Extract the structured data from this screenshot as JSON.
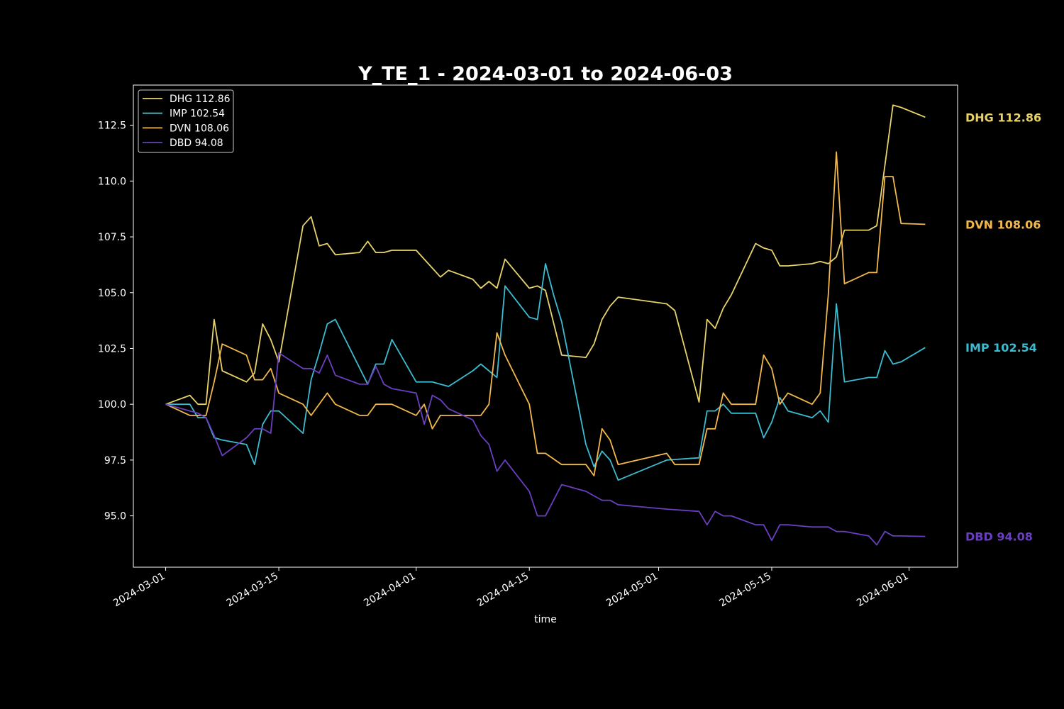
{
  "chart_data": {
    "type": "line",
    "title": "Y_TE_1 - 2024-03-01 to 2024-06-03",
    "xlabel": "time",
    "ylabel": "",
    "ylim": [
      92.7,
      114.3
    ],
    "xlim": [
      "2024-02-26",
      "2024-06-07"
    ],
    "yticks": [
      95.0,
      97.5,
      100.0,
      102.5,
      105.0,
      107.5,
      110.0,
      112.5
    ],
    "ytick_labels": [
      "95.0",
      "97.5",
      "100.0",
      "102.5",
      "105.0",
      "107.5",
      "110.0",
      "112.5"
    ],
    "xticks": [
      "2024-03-01",
      "2024-03-15",
      "2024-04-01",
      "2024-04-15",
      "2024-05-01",
      "2024-05-15",
      "2024-06-01"
    ],
    "xtick_labels": [
      "2024-03-01",
      "2024-03-15",
      "2024-04-01",
      "2024-04-15",
      "2024-05-01",
      "2024-05-15",
      "2024-06-01"
    ],
    "legend_position": "top-left",
    "grid": false,
    "series": [
      {
        "name": "DHG 112.86",
        "color": "#e8d36a",
        "end_label": "DHG 112.86",
        "points": [
          [
            "2024-03-01",
            100.0
          ],
          [
            "2024-03-04",
            100.4
          ],
          [
            "2024-03-05",
            100.0
          ],
          [
            "2024-03-06",
            100.0
          ],
          [
            "2024-03-07",
            103.8
          ],
          [
            "2024-03-08",
            101.5
          ],
          [
            "2024-03-11",
            101.0
          ],
          [
            "2024-03-12",
            101.4
          ],
          [
            "2024-03-13",
            103.6
          ],
          [
            "2024-03-14",
            102.9
          ],
          [
            "2024-03-15",
            101.9
          ],
          [
            "2024-03-18",
            108.0
          ],
          [
            "2024-03-19",
            108.4
          ],
          [
            "2024-03-20",
            107.1
          ],
          [
            "2024-03-21",
            107.2
          ],
          [
            "2024-03-22",
            106.7
          ],
          [
            "2024-03-25",
            106.8
          ],
          [
            "2024-03-26",
            107.3
          ],
          [
            "2024-03-27",
            106.8
          ],
          [
            "2024-03-28",
            106.8
          ],
          [
            "2024-03-29",
            106.9
          ],
          [
            "2024-04-01",
            106.9
          ],
          [
            "2024-04-02",
            106.5
          ],
          [
            "2024-04-03",
            106.1
          ],
          [
            "2024-04-04",
            105.7
          ],
          [
            "2024-04-05",
            106.0
          ],
          [
            "2024-04-08",
            105.6
          ],
          [
            "2024-04-09",
            105.2
          ],
          [
            "2024-04-10",
            105.5
          ],
          [
            "2024-04-11",
            105.2
          ],
          [
            "2024-04-12",
            106.5
          ],
          [
            "2024-04-15",
            105.2
          ],
          [
            "2024-04-16",
            105.3
          ],
          [
            "2024-04-17",
            105.1
          ],
          [
            "2024-04-19",
            102.2
          ],
          [
            "2024-04-22",
            102.1
          ],
          [
            "2024-04-23",
            102.7
          ],
          [
            "2024-04-24",
            103.8
          ],
          [
            "2024-04-25",
            104.4
          ],
          [
            "2024-04-26",
            104.8
          ],
          [
            "2024-05-02",
            104.5
          ],
          [
            "2024-05-03",
            104.2
          ],
          [
            "2024-05-06",
            100.1
          ],
          [
            "2024-05-07",
            103.8
          ],
          [
            "2024-05-08",
            103.4
          ],
          [
            "2024-05-09",
            104.3
          ],
          [
            "2024-05-10",
            104.9
          ],
          [
            "2024-05-13",
            107.2
          ],
          [
            "2024-05-14",
            107.0
          ],
          [
            "2024-05-15",
            106.9
          ],
          [
            "2024-05-16",
            106.2
          ],
          [
            "2024-05-17",
            106.2
          ],
          [
            "2024-05-20",
            106.3
          ],
          [
            "2024-05-21",
            106.4
          ],
          [
            "2024-05-22",
            106.3
          ],
          [
            "2024-05-23",
            106.6
          ],
          [
            "2024-05-24",
            107.8
          ],
          [
            "2024-05-27",
            107.8
          ],
          [
            "2024-05-28",
            108.0
          ],
          [
            "2024-05-30",
            113.4
          ],
          [
            "2024-05-31",
            113.3
          ],
          [
            "2024-06-03",
            112.86
          ]
        ]
      },
      {
        "name": "IMP 102.54",
        "color": "#3bbcd0",
        "end_label": "IMP 102.54",
        "points": [
          [
            "2024-03-01",
            100.0
          ],
          [
            "2024-03-04",
            100.0
          ],
          [
            "2024-03-05",
            99.4
          ],
          [
            "2024-03-06",
            99.4
          ],
          [
            "2024-03-07",
            98.5
          ],
          [
            "2024-03-08",
            98.4
          ],
          [
            "2024-03-11",
            98.2
          ],
          [
            "2024-03-12",
            97.3
          ],
          [
            "2024-03-13",
            99.1
          ],
          [
            "2024-03-14",
            99.7
          ],
          [
            "2024-03-15",
            99.7
          ],
          [
            "2024-03-18",
            98.7
          ],
          [
            "2024-03-19",
            101.1
          ],
          [
            "2024-03-20",
            102.3
          ],
          [
            "2024-03-21",
            103.6
          ],
          [
            "2024-03-22",
            103.8
          ],
          [
            "2024-03-26",
            100.9
          ],
          [
            "2024-03-27",
            101.8
          ],
          [
            "2024-03-28",
            101.8
          ],
          [
            "2024-03-29",
            102.9
          ],
          [
            "2024-04-01",
            101.0
          ],
          [
            "2024-04-03",
            101.0
          ],
          [
            "2024-04-05",
            100.8
          ],
          [
            "2024-04-08",
            101.5
          ],
          [
            "2024-04-09",
            101.8
          ],
          [
            "2024-04-11",
            101.2
          ],
          [
            "2024-04-12",
            105.3
          ],
          [
            "2024-04-15",
            103.9
          ],
          [
            "2024-04-16",
            103.8
          ],
          [
            "2024-04-17",
            106.3
          ],
          [
            "2024-04-18",
            104.9
          ],
          [
            "2024-04-19",
            103.7
          ],
          [
            "2024-04-22",
            98.2
          ],
          [
            "2024-04-23",
            97.2
          ],
          [
            "2024-04-24",
            97.9
          ],
          [
            "2024-04-25",
            97.5
          ],
          [
            "2024-04-26",
            96.6
          ],
          [
            "2024-05-02",
            97.5
          ],
          [
            "2024-05-06",
            97.6
          ],
          [
            "2024-05-07",
            99.7
          ],
          [
            "2024-05-08",
            99.7
          ],
          [
            "2024-05-09",
            100.0
          ],
          [
            "2024-05-10",
            99.6
          ],
          [
            "2024-05-13",
            99.6
          ],
          [
            "2024-05-14",
            98.5
          ],
          [
            "2024-05-15",
            99.2
          ],
          [
            "2024-05-16",
            100.3
          ],
          [
            "2024-05-17",
            99.7
          ],
          [
            "2024-05-20",
            99.4
          ],
          [
            "2024-05-21",
            99.7
          ],
          [
            "2024-05-22",
            99.2
          ],
          [
            "2024-05-23",
            104.5
          ],
          [
            "2024-05-24",
            101.0
          ],
          [
            "2024-05-27",
            101.2
          ],
          [
            "2024-05-28",
            101.2
          ],
          [
            "2024-05-29",
            102.4
          ],
          [
            "2024-05-30",
            101.8
          ],
          [
            "2024-05-31",
            101.9
          ],
          [
            "2024-06-03",
            102.54
          ]
        ]
      },
      {
        "name": "DVN 108.06",
        "color": "#f2b84b",
        "end_label": "DVN 108.06",
        "points": [
          [
            "2024-03-01",
            100.0
          ],
          [
            "2024-03-04",
            99.5
          ],
          [
            "2024-03-05",
            99.5
          ],
          [
            "2024-03-06",
            99.5
          ],
          [
            "2024-03-07",
            101.0
          ],
          [
            "2024-03-08",
            102.7
          ],
          [
            "2024-03-11",
            102.2
          ],
          [
            "2024-03-12",
            101.1
          ],
          [
            "2024-03-13",
            101.1
          ],
          [
            "2024-03-14",
            101.6
          ],
          [
            "2024-03-15",
            100.5
          ],
          [
            "2024-03-18",
            100.0
          ],
          [
            "2024-03-19",
            99.5
          ],
          [
            "2024-03-21",
            100.5
          ],
          [
            "2024-03-22",
            100.0
          ],
          [
            "2024-03-25",
            99.5
          ],
          [
            "2024-03-26",
            99.5
          ],
          [
            "2024-03-27",
            100.0
          ],
          [
            "2024-03-29",
            100.0
          ],
          [
            "2024-04-01",
            99.5
          ],
          [
            "2024-04-02",
            100.0
          ],
          [
            "2024-04-03",
            98.9
          ],
          [
            "2024-04-04",
            99.5
          ],
          [
            "2024-04-09",
            99.5
          ],
          [
            "2024-04-10",
            100.0
          ],
          [
            "2024-04-11",
            103.2
          ],
          [
            "2024-04-12",
            102.2
          ],
          [
            "2024-04-15",
            100.0
          ],
          [
            "2024-04-16",
            97.8
          ],
          [
            "2024-04-17",
            97.8
          ],
          [
            "2024-04-19",
            97.3
          ],
          [
            "2024-04-22",
            97.3
          ],
          [
            "2024-04-23",
            96.8
          ],
          [
            "2024-04-24",
            98.9
          ],
          [
            "2024-04-25",
            98.4
          ],
          [
            "2024-04-26",
            97.3
          ],
          [
            "2024-05-02",
            97.8
          ],
          [
            "2024-05-03",
            97.3
          ],
          [
            "2024-05-06",
            97.3
          ],
          [
            "2024-05-07",
            98.9
          ],
          [
            "2024-05-08",
            98.9
          ],
          [
            "2024-05-09",
            100.5
          ],
          [
            "2024-05-10",
            100.0
          ],
          [
            "2024-05-13",
            100.0
          ],
          [
            "2024-05-14",
            102.2
          ],
          [
            "2024-05-15",
            101.6
          ],
          [
            "2024-05-16",
            100.0
          ],
          [
            "2024-05-17",
            100.5
          ],
          [
            "2024-05-20",
            100.0
          ],
          [
            "2024-05-21",
            100.5
          ],
          [
            "2024-05-22",
            104.9
          ],
          [
            "2024-05-23",
            111.3
          ],
          [
            "2024-05-24",
            105.4
          ],
          [
            "2024-05-27",
            105.9
          ],
          [
            "2024-05-28",
            105.9
          ],
          [
            "2024-05-29",
            110.2
          ],
          [
            "2024-05-30",
            110.2
          ],
          [
            "2024-05-31",
            108.1
          ],
          [
            "2024-06-03",
            108.06
          ]
        ]
      },
      {
        "name": "DBD 94.08",
        "color": "#6a3fbf",
        "end_label": "DBD 94.08",
        "points": [
          [
            "2024-03-01",
            100.0
          ],
          [
            "2024-03-04",
            99.7
          ],
          [
            "2024-03-05",
            99.6
          ],
          [
            "2024-03-06",
            99.4
          ],
          [
            "2024-03-07",
            98.6
          ],
          [
            "2024-03-08",
            97.7
          ],
          [
            "2024-03-11",
            98.5
          ],
          [
            "2024-03-12",
            98.9
          ],
          [
            "2024-03-13",
            98.9
          ],
          [
            "2024-03-14",
            98.7
          ],
          [
            "2024-03-15",
            102.3
          ],
          [
            "2024-03-18",
            101.6
          ],
          [
            "2024-03-19",
            101.6
          ],
          [
            "2024-03-20",
            101.4
          ],
          [
            "2024-03-21",
            102.2
          ],
          [
            "2024-03-22",
            101.3
          ],
          [
            "2024-03-25",
            100.9
          ],
          [
            "2024-03-26",
            100.9
          ],
          [
            "2024-03-27",
            101.7
          ],
          [
            "2024-03-28",
            100.9
          ],
          [
            "2024-03-29",
            100.7
          ],
          [
            "2024-04-01",
            100.5
          ],
          [
            "2024-04-02",
            99.1
          ],
          [
            "2024-04-03",
            100.4
          ],
          [
            "2024-04-04",
            100.2
          ],
          [
            "2024-04-05",
            99.8
          ],
          [
            "2024-04-08",
            99.3
          ],
          [
            "2024-04-09",
            98.6
          ],
          [
            "2024-04-10",
            98.2
          ],
          [
            "2024-04-11",
            97.0
          ],
          [
            "2024-04-12",
            97.5
          ],
          [
            "2024-04-15",
            96.1
          ],
          [
            "2024-04-16",
            95.0
          ],
          [
            "2024-04-17",
            95.0
          ],
          [
            "2024-04-19",
            96.4
          ],
          [
            "2024-04-22",
            96.1
          ],
          [
            "2024-04-24",
            95.7
          ],
          [
            "2024-04-25",
            95.7
          ],
          [
            "2024-04-26",
            95.5
          ],
          [
            "2024-05-02",
            95.3
          ],
          [
            "2024-05-06",
            95.2
          ],
          [
            "2024-05-07",
            94.6
          ],
          [
            "2024-05-08",
            95.2
          ],
          [
            "2024-05-09",
            95.0
          ],
          [
            "2024-05-10",
            95.0
          ],
          [
            "2024-05-13",
            94.6
          ],
          [
            "2024-05-14",
            94.6
          ],
          [
            "2024-05-15",
            93.9
          ],
          [
            "2024-05-16",
            94.6
          ],
          [
            "2024-05-17",
            94.6
          ],
          [
            "2024-05-20",
            94.5
          ],
          [
            "2024-05-21",
            94.5
          ],
          [
            "2024-05-22",
            94.5
          ],
          [
            "2024-05-23",
            94.3
          ],
          [
            "2024-05-24",
            94.3
          ],
          [
            "2024-05-27",
            94.1
          ],
          [
            "2024-05-28",
            93.7
          ],
          [
            "2024-05-29",
            94.3
          ],
          [
            "2024-05-30",
            94.1
          ],
          [
            "2024-05-31",
            94.1
          ],
          [
            "2024-06-03",
            94.08
          ]
        ]
      }
    ]
  }
}
